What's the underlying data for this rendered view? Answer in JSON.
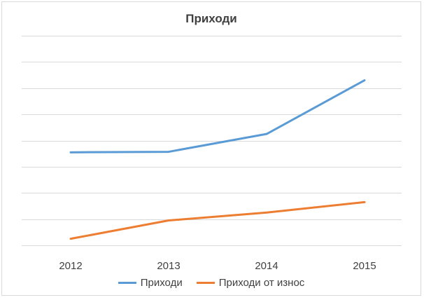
{
  "chart_data": {
    "type": "line",
    "title": "Приходи",
    "xlabel": "",
    "ylabel": "",
    "categories": [
      "2012",
      "2013",
      "2014",
      "2015"
    ],
    "ylim": [
      0,
      8
    ],
    "grid": true,
    "legend_position": "bottom",
    "series": [
      {
        "name": "Приходи",
        "color": "#5b9bd5",
        "values": [
          3.55,
          3.57,
          4.25,
          6.3
        ]
      },
      {
        "name": "Приходи от износ",
        "color": "#ed7d31",
        "values": [
          0.25,
          0.95,
          1.25,
          1.65
        ]
      }
    ]
  }
}
